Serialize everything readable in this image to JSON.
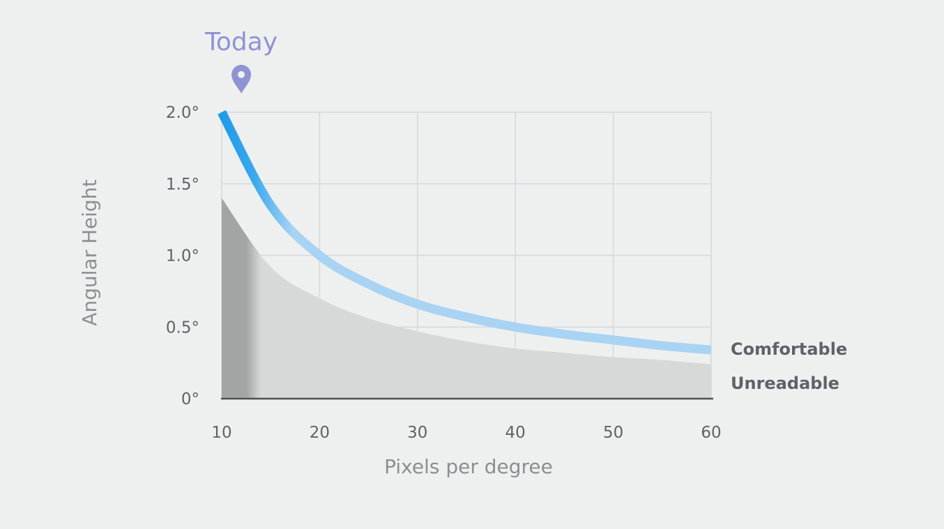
{
  "chart_data": {
    "type": "area",
    "xlabel": "Pixels per degree",
    "ylabel": "Angular Height",
    "xlim": [
      10,
      60
    ],
    "ylim": [
      0,
      2.0
    ],
    "x_ticks": [
      {
        "value": 10,
        "label": "10"
      },
      {
        "value": 20,
        "label": "20"
      },
      {
        "value": 30,
        "label": "30"
      },
      {
        "value": 40,
        "label": "40"
      },
      {
        "value": 50,
        "label": "50"
      },
      {
        "value": 60,
        "label": "60"
      }
    ],
    "y_ticks": [
      {
        "value": 0,
        "label": "0°"
      },
      {
        "value": 0.5,
        "label": "0.5°"
      },
      {
        "value": 1.0,
        "label": "1.0°"
      },
      {
        "value": 1.5,
        "label": "1.5°"
      },
      {
        "value": 2.0,
        "label": "2.0°"
      }
    ],
    "grid": true,
    "series": [
      {
        "name": "Comfortable",
        "style": "line",
        "color": "#a9d3f3",
        "color_strong": "#1e9be8",
        "x": [
          10,
          15,
          20,
          25,
          30,
          35,
          40,
          45,
          50,
          55,
          60
        ],
        "y": [
          2.0,
          1.35,
          1.0,
          0.8,
          0.66,
          0.57,
          0.5,
          0.45,
          0.41,
          0.37,
          0.34
        ]
      },
      {
        "name": "Unreadable",
        "style": "area",
        "color": "#d7d9d8",
        "color_dark": "#a3a5a5",
        "x": [
          10,
          15,
          20,
          25,
          30,
          35,
          40,
          45,
          50,
          55,
          60
        ],
        "y": [
          1.4,
          0.92,
          0.7,
          0.56,
          0.47,
          0.4,
          0.35,
          0.32,
          0.29,
          0.27,
          0.24
        ]
      }
    ],
    "annotations": [
      {
        "text": "Today",
        "x": 12,
        "icon": "location-pin-icon",
        "color": "#8f93d3"
      }
    ]
  }
}
